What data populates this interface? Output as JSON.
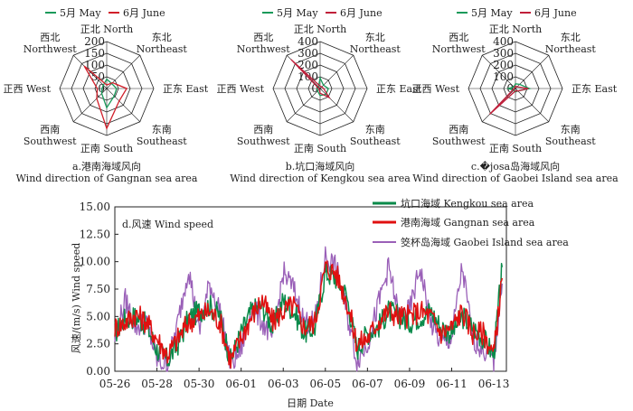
{
  "radar_legend": {
    "may": "5月 May",
    "june": "6月 June"
  },
  "directions": [
    [
      "正北 North"
    ],
    [
      "东北",
      "Northeast"
    ],
    [
      "正东 East"
    ],
    [
      "东南",
      "Southeast"
    ],
    [
      "正南 South"
    ],
    [
      "西南",
      "Southwest"
    ],
    [
      "正西 West"
    ],
    [
      "西北",
      "Northwest"
    ]
  ],
  "colors": {
    "may_radar": "#1a9a5a",
    "june_radar": "#d11f2a",
    "june_radar_b": "#c01f3a",
    "kengkou": "#0a8a4a",
    "gangnan": "#e01010",
    "gaobei": "#9a60b8",
    "grid": "#222222"
  },
  "chart_data": [
    {
      "type": "radar",
      "caption_cn": "a.港南海域风向",
      "caption_en": "Wind direction of Gangnan sea area",
      "rticks": [
        "200",
        "150",
        "100",
        "50",
        "0"
      ],
      "rmax": 200,
      "series": [
        {
          "name": "5月 May",
          "values": [
            40,
            30,
            42,
            45,
            82,
            30,
            20,
            20
          ]
        },
        {
          "name": "6月 June",
          "values": [
            15,
            35,
            85,
            75,
            170,
            60,
            40,
            135
          ]
        }
      ]
    },
    {
      "type": "radar",
      "caption_cn": "b.坑口海域风向",
      "caption_en": "Wind direction of Kengkou sea area",
      "rticks": [
        "400",
        "300",
        "200",
        "100",
        "0"
      ],
      "rmax": 400,
      "series": [
        {
          "name": "5月 May",
          "values": [
            90,
            40,
            70,
            70,
            60,
            30,
            25,
            20
          ]
        },
        {
          "name": "6月 June",
          "values": [
            20,
            20,
            30,
            110,
            40,
            10,
            10,
            350
          ]
        }
      ]
    },
    {
      "type": "radar",
      "caption_cn": "c.�josa岛海域风向",
      "caption_en": "Wind direction of Gaobei Island sea area",
      "rticks": [
        "400",
        "300",
        "200",
        "100",
        "0"
      ],
      "rmax": 400,
      "series": [
        {
          "name": "5月 May",
          "values": [
            40,
            50,
            120,
            30,
            30,
            20,
            60,
            20
          ]
        },
        {
          "name": "6月 June",
          "values": [
            20,
            20,
            110,
            30,
            20,
            310,
            10,
            10
          ]
        }
      ]
    },
    {
      "type": "line",
      "panel": "d.风速 Wind speed",
      "xlabel": "日期 Date",
      "ylabel": "风速/(m/s) Wind speed",
      "ylim": [
        0,
        15
      ],
      "yticks": [
        "0.00",
        "2.50",
        "5.00",
        "7.50",
        "10.00",
        "12.50",
        "15.00"
      ],
      "xticks": [
        "05-26",
        "05-28",
        "05-30",
        "06-01",
        "06-03",
        "06-05",
        "06-07",
        "06-09",
        "06-11",
        "06-13"
      ],
      "xtick_day": [
        0,
        2,
        4,
        6,
        8,
        10,
        12,
        14,
        16,
        18
      ],
      "xlim_day": [
        0,
        18.6
      ],
      "series": [
        {
          "name": "坑口海域 Kengkou sea area",
          "day": [
            0,
            0.5,
            1,
            1.5,
            2,
            2.5,
            3,
            3.5,
            4,
            4.5,
            5,
            5.5,
            6,
            6.5,
            7,
            7.5,
            8,
            8.5,
            9,
            9.5,
            10,
            10.5,
            11,
            11.5,
            12,
            12.5,
            13,
            13.5,
            14,
            14.5,
            15,
            15.5,
            16,
            16.5,
            17,
            17.5,
            18,
            18.4
          ],
          "values": [
            3.5,
            4.8,
            5.0,
            4.2,
            2.0,
            1.0,
            2.5,
            4.8,
            5.5,
            6.0,
            5.0,
            1.0,
            3.5,
            5.5,
            6.0,
            4.0,
            6.5,
            5.5,
            3.5,
            4.0,
            9.0,
            8.5,
            7.0,
            2.0,
            3.5,
            4.0,
            5.5,
            5.0,
            4.5,
            5.0,
            5.5,
            4.0,
            3.5,
            5.0,
            4.0,
            3.0,
            1.5,
            9.5
          ]
        },
        {
          "name": "港南海域 Gangnan sea area",
          "day": [
            0,
            0.5,
            1,
            1.5,
            2,
            2.5,
            3,
            3.5,
            4,
            4.5,
            5,
            5.5,
            6,
            6.5,
            7,
            7.5,
            8,
            8.5,
            9,
            9.5,
            10,
            10.5,
            11,
            11.5,
            12,
            12.5,
            13,
            13.5,
            14,
            14.5,
            15,
            15.5,
            16,
            16.5,
            17,
            17.5,
            18,
            18.4
          ],
          "values": [
            4.0,
            4.5,
            5.2,
            4.5,
            3.0,
            1.5,
            3.0,
            4.5,
            5.0,
            5.5,
            4.5,
            1.0,
            3.0,
            5.0,
            6.5,
            4.5,
            5.5,
            6.0,
            4.0,
            4.5,
            9.5,
            9.0,
            6.5,
            2.5,
            3.0,
            4.5,
            5.5,
            5.0,
            5.0,
            5.5,
            5.0,
            3.5,
            4.0,
            5.5,
            3.5,
            3.5,
            1.5,
            8.5
          ]
        },
        {
          "name": "筊杯岛海域 Gaobei Island sea area",
          "day": [
            0,
            0.5,
            1,
            1.5,
            2,
            2.5,
            3,
            3.5,
            4,
            4.5,
            5,
            5.5,
            6,
            6.5,
            7,
            7.5,
            8,
            8.5,
            9,
            9.5,
            10,
            10.5,
            11,
            11.5,
            12,
            12.5,
            13,
            13.5,
            14,
            14.5,
            15,
            15.5,
            16,
            16.5,
            17,
            17.5,
            18,
            18.4
          ],
          "values": [
            3.0,
            6.5,
            4.0,
            4.5,
            1.0,
            0.5,
            4.5,
            9.5,
            3.5,
            8.0,
            5.5,
            0.5,
            2.0,
            6.0,
            4.5,
            3.0,
            9.0,
            7.5,
            4.5,
            4.5,
            10.5,
            9.5,
            5.5,
            1.0,
            2.5,
            6.0,
            9.5,
            5.0,
            5.5,
            9.5,
            4.5,
            2.5,
            3.0,
            9.5,
            3.0,
            2.0,
            1.0,
            8.0
          ]
        }
      ]
    }
  ]
}
